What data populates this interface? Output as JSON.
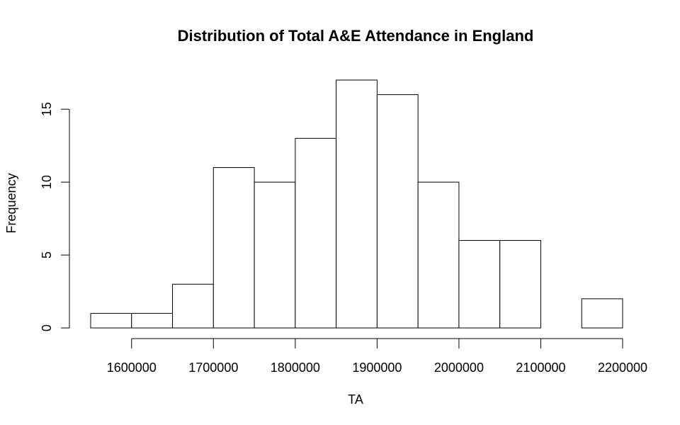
{
  "chart_data": {
    "type": "bar",
    "title": "Distribution of Total A&E Attendance in England",
    "xlabel": "TA",
    "ylabel": "Frequency",
    "bins": [
      {
        "start": 1550000,
        "end": 1600000,
        "count": 1
      },
      {
        "start": 1600000,
        "end": 1650000,
        "count": 1
      },
      {
        "start": 1650000,
        "end": 1700000,
        "count": 3
      },
      {
        "start": 1700000,
        "end": 1750000,
        "count": 11
      },
      {
        "start": 1750000,
        "end": 1800000,
        "count": 10
      },
      {
        "start": 1800000,
        "end": 1850000,
        "count": 13
      },
      {
        "start": 1850000,
        "end": 1900000,
        "count": 17
      },
      {
        "start": 1900000,
        "end": 1950000,
        "count": 16
      },
      {
        "start": 1950000,
        "end": 2000000,
        "count": 10
      },
      {
        "start": 2000000,
        "end": 2050000,
        "count": 6
      },
      {
        "start": 2050000,
        "end": 2100000,
        "count": 6
      },
      {
        "start": 2100000,
        "end": 2150000,
        "count": 0
      },
      {
        "start": 2150000,
        "end": 2200000,
        "count": 2
      }
    ],
    "xticks": [
      "1600000",
      "1700000",
      "1800000",
      "1900000",
      "2000000",
      "2100000",
      "2200000"
    ],
    "yticks": [
      "0",
      "5",
      "10",
      "15"
    ],
    "xlim": [
      1550000,
      2200000
    ],
    "ylim": [
      0,
      17
    ],
    "grid": false,
    "legend": "none"
  }
}
